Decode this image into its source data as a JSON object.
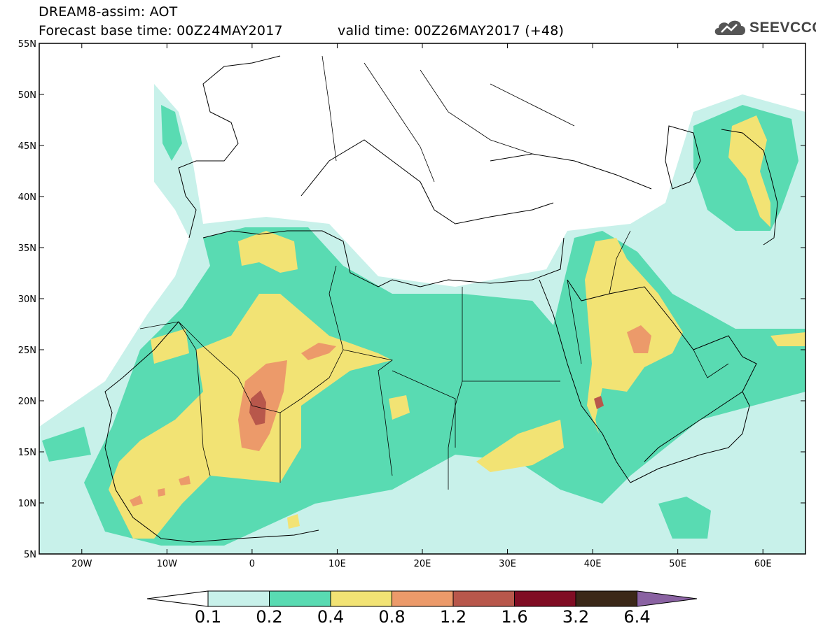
{
  "header": {
    "line1": "DREAM8-assim: AOT",
    "line2a": "Forecast base time: 00Z24MAY2017",
    "line2b": "valid time: 00Z26MAY2017 (+48)"
  },
  "logo": {
    "text": "SEEVCCC",
    "icon": "cloud-logo-icon"
  },
  "map": {
    "lat_ticks": [
      "55N",
      "50N",
      "45N",
      "40N",
      "35N",
      "30N",
      "25N",
      "20N",
      "15N",
      "10N",
      "5N"
    ],
    "lon_ticks": [
      "20W",
      "10W",
      "0",
      "10E",
      "20E",
      "30E",
      "40E",
      "50E",
      "60E"
    ],
    "lon_range": [
      -25,
      65
    ],
    "lat_range": [
      5,
      55
    ]
  },
  "colorbar": {
    "labels": [
      "0.1",
      "0.2",
      "0.4",
      "0.8",
      "1.2",
      "1.6",
      "3.2",
      "6.4"
    ],
    "colors": [
      "#c8f1ea",
      "#59dbb2",
      "#f2e374",
      "#ec9a6a",
      "#b8574b",
      "#800d24",
      "#3b2818",
      "#8a62a2"
    ]
  },
  "colors": {
    "low": "#c8f1ea",
    "mid": "#59dbb2",
    "high": "#f2e374",
    "vhigh": "#ec9a6a",
    "ext": "#b8574b"
  }
}
